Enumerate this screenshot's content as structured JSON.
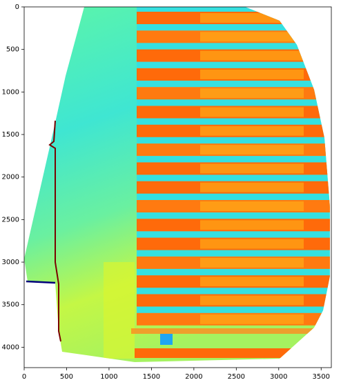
{
  "chart_data": {
    "type": "image",
    "xlim": [
      0,
      3620
    ],
    "ylim": [
      4240,
      0
    ],
    "xticks": [
      0,
      500,
      1000,
      1500,
      2000,
      2500,
      3000,
      3500
    ],
    "yticks": [
      0,
      500,
      1000,
      1500,
      2000,
      2500,
      3000,
      3500,
      4000
    ]
  }
}
